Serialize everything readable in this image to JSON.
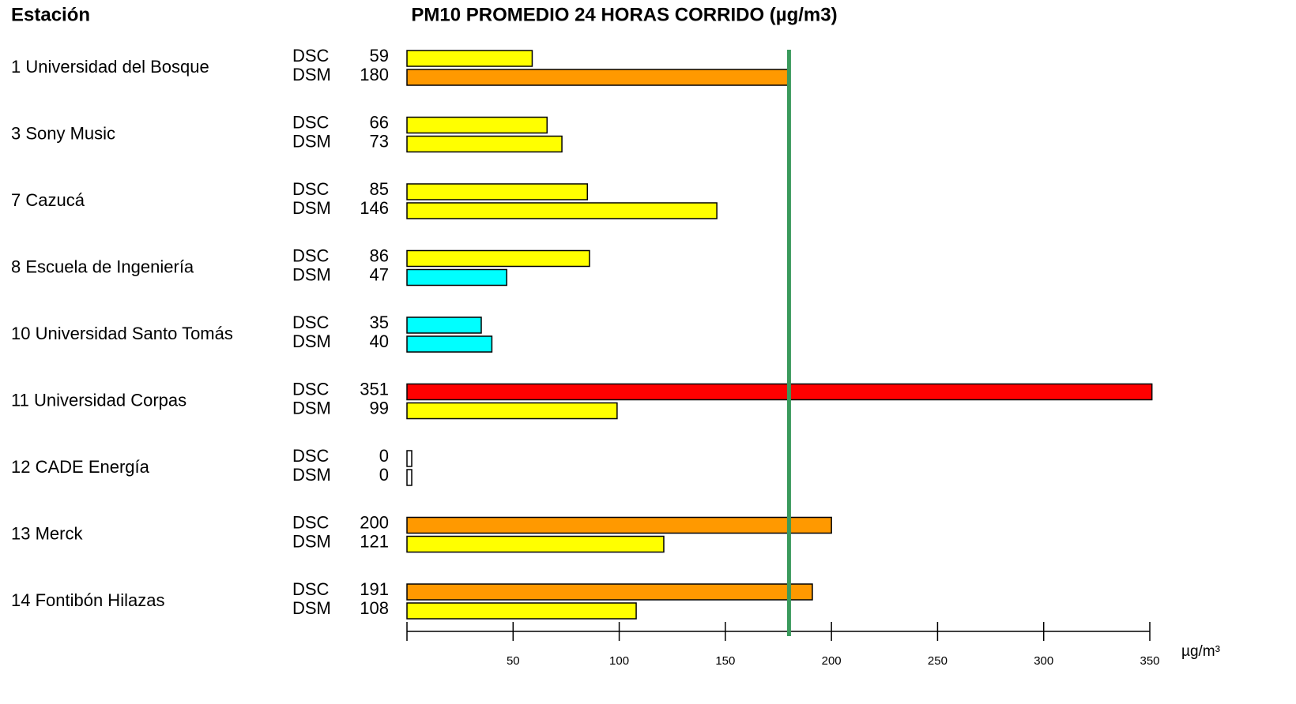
{
  "chart_data": {
    "type": "bar",
    "orientation": "horizontal",
    "header": "Estación",
    "title": "PM10 PROMEDIO 24 HORAS CORRIDO  (µg/m3)",
    "x_unit": "µg/m³",
    "categories": [
      "1  Universidad del Bosque",
      "3  Sony Music",
      "7  Cazucá",
      "8  Escuela de Ingeniería",
      "10  Universidad Santo Tomás",
      "11  Universidad Corpas",
      "12  CADE Energía",
      "13  Merck",
      "14  Fontibón Hilazas"
    ],
    "series": [
      {
        "name": "DSC",
        "values": [
          59,
          66,
          85,
          86,
          35,
          351,
          0,
          200,
          191
        ],
        "colors": [
          "#ffff00",
          "#ffff00",
          "#ffff00",
          "#ffff00",
          "#00ffff",
          "#ff0000",
          "#ffffff",
          "#ff9900",
          "#ff9900"
        ]
      },
      {
        "name": "DSM",
        "values": [
          180,
          73,
          146,
          47,
          40,
          99,
          0,
          121,
          108
        ],
        "colors": [
          "#ff9900",
          "#ffff00",
          "#ffff00",
          "#00ffff",
          "#00ffff",
          "#ffff00",
          "#ffffff",
          "#ffff00",
          "#ffff00"
        ]
      }
    ],
    "xlim": [
      0,
      350
    ],
    "xticks": [
      50,
      100,
      150,
      200,
      250,
      300,
      350
    ],
    "reference_line": {
      "value": 180,
      "color": "#3a9a5c"
    }
  }
}
